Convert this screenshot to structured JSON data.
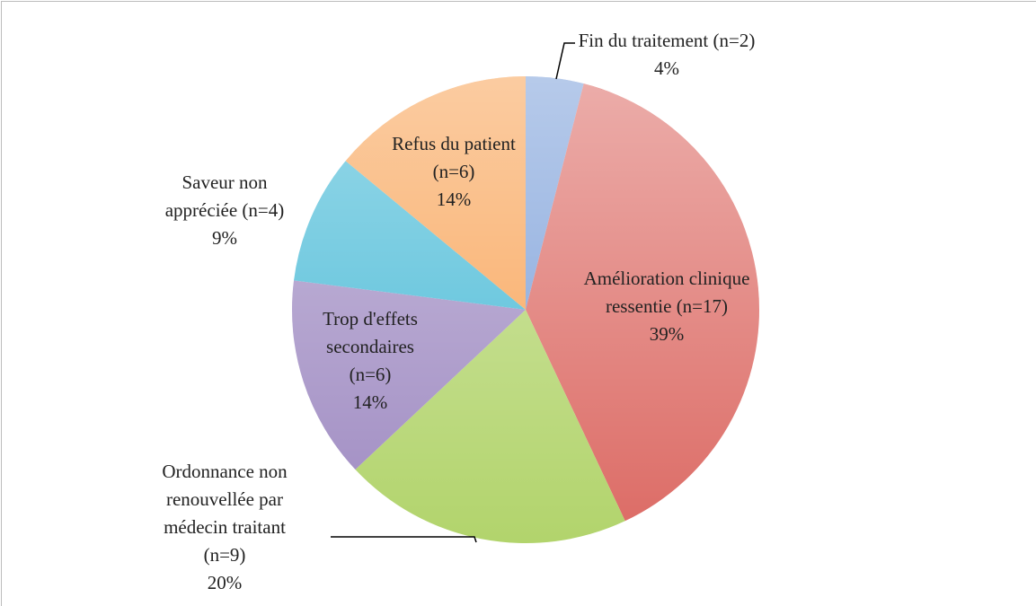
{
  "chart_data": {
    "type": "pie",
    "categories": [
      "Fin du traitement (n=2)",
      "Amélioration clinique ressentie (n=17)",
      "Ordonnance non renouvellée par médecin traitant (n=9)",
      "Trop d'effets secondaires (n=6)",
      "Saveur non appréciée (n=4)",
      "Refus du patient (n=6)"
    ],
    "values": [
      4,
      39,
      20,
      14,
      9,
      14
    ],
    "value_labels": [
      "4%",
      "39%",
      "20%",
      "14%",
      "9%",
      "14%"
    ],
    "colors": [
      "#7b9fd9",
      "#dc6a64",
      "#b2d46c",
      "#9f8bc2",
      "#45b9d6",
      "#f8a254"
    ]
  }
}
